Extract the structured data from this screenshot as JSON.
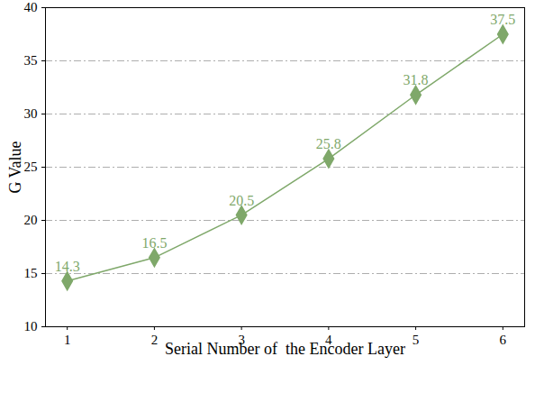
{
  "chart_data": {
    "type": "line",
    "x": [
      1,
      2,
      3,
      4,
      5,
      6
    ],
    "values": [
      14.3,
      16.5,
      20.5,
      25.8,
      31.8,
      37.5
    ],
    "color": "#7fa86a",
    "marker": "diamond",
    "line_style": "solid",
    "x_label": "Serial Number of  the Encoder Layer",
    "y_label": "G Value",
    "xlim": [
      0.75,
      6.25
    ],
    "xticks": [
      1,
      2,
      3,
      4,
      5,
      6
    ],
    "ylim": [
      10,
      40
    ],
    "yticks": [
      10,
      15,
      20,
      25,
      30,
      35,
      40
    ],
    "grid": true,
    "data_labels": true
  }
}
